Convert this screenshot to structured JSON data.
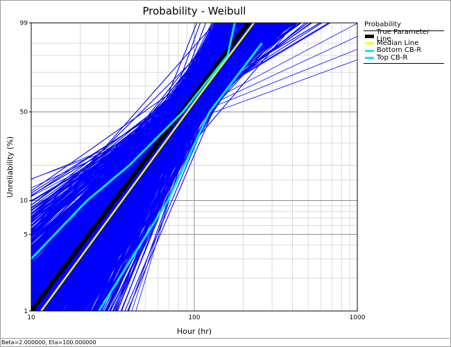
{
  "chart_data": {
    "type": "line",
    "title": "Probability - Weibull",
    "xlabel": "Hour (hr)",
    "ylabel": "Unreliability (%)",
    "x_scale": "log",
    "y_scale": "weibull probability",
    "xlim": [
      10,
      1000
    ],
    "ylim": [
      1,
      99
    ],
    "x_ticks": [
      "10",
      "100",
      "1000"
    ],
    "y_ticks": [
      "1",
      "5",
      "10",
      "50",
      "99"
    ],
    "grid": true,
    "legend_placement": "right",
    "legend_title": "Probability",
    "series": [
      {
        "name": "True Parameter Line",
        "color": "#000000",
        "beta": 2.0,
        "eta": 100.0,
        "points": [
          {
            "x": 10,
            "y": 1.0
          },
          {
            "x": 100,
            "y": 63.2
          },
          {
            "x": 214.6,
            "y": 99.0
          }
        ]
      },
      {
        "name": "Median Line",
        "color": "#ffff00",
        "beta": 2.0,
        "eta": 108.0,
        "points": [
          {
            "x": 11.5,
            "y": 1.0
          },
          {
            "x": 108,
            "y": 63.2
          },
          {
            "x": 232,
            "y": 99.0
          }
        ]
      },
      {
        "name": "Bottom CB-R",
        "color": "#00e5ff",
        "points": [
          {
            "x": 26,
            "y": 1.0
          },
          {
            "x": 51,
            "y": 5.0
          },
          {
            "x": 69,
            "y": 10.0
          },
          {
            "x": 124,
            "y": 50.0
          },
          {
            "x": 260,
            "y": 95.0
          }
        ]
      },
      {
        "name": "Top CB-R",
        "color": "#00e5ff",
        "points": [
          {
            "x": 10,
            "y": 3.0
          },
          {
            "x": 22,
            "y": 10.0
          },
          {
            "x": 40,
            "y": 20.0
          },
          {
            "x": 85,
            "y": 50.0
          },
          {
            "x": 160,
            "y": 90.0
          },
          {
            "x": 177,
            "y": 99.0
          }
        ]
      }
    ],
    "simulated_lines": {
      "color": "#0000ff",
      "description": "many simulated Weibull fits",
      "beta_range": [
        1.0,
        4.0
      ],
      "eta_range": [
        60,
        170
      ]
    }
  },
  "footer": {
    "text": "Beta=2.000000, Eta=100.000000"
  }
}
